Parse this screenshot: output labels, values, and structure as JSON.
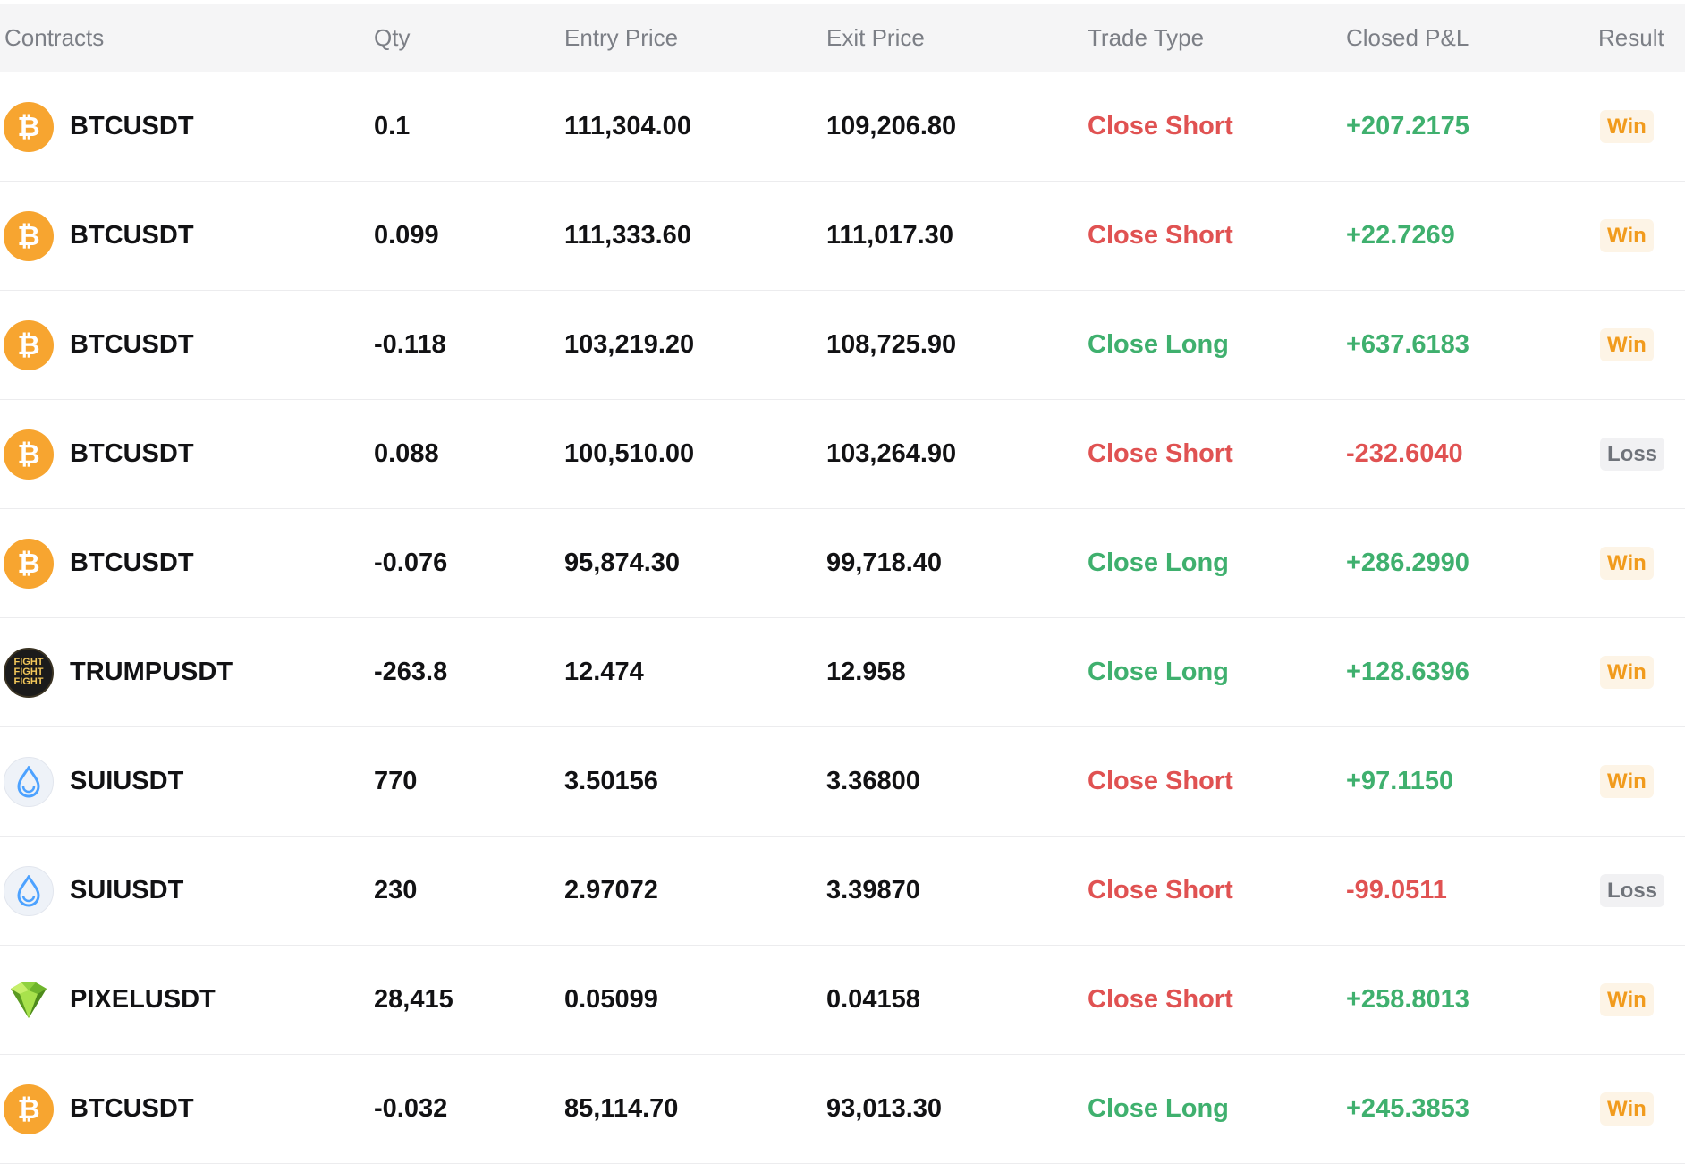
{
  "table": {
    "headers": {
      "contracts": "Contracts",
      "qty": "Qty",
      "entry_price": "Entry Price",
      "exit_price": "Exit Price",
      "trade_type": "Trade Type",
      "closed_pnl": "Closed P&L",
      "result": "Result"
    },
    "rows": [
      {
        "icon": "bitcoin-icon",
        "symbol": "BTCUSDT",
        "qty": "0.1",
        "entry": "111,304.00",
        "exit": "109,206.80",
        "type": "Close Short",
        "pnl": "+207.2175",
        "result": "Win"
      },
      {
        "icon": "bitcoin-icon",
        "symbol": "BTCUSDT",
        "qty": "0.099",
        "entry": "111,333.60",
        "exit": "111,017.30",
        "type": "Close Short",
        "pnl": "+22.7269",
        "result": "Win"
      },
      {
        "icon": "bitcoin-icon",
        "symbol": "BTCUSDT",
        "qty": "-0.118",
        "entry": "103,219.20",
        "exit": "108,725.90",
        "type": "Close Long",
        "pnl": "+637.6183",
        "result": "Win"
      },
      {
        "icon": "bitcoin-icon",
        "symbol": "BTCUSDT",
        "qty": "0.088",
        "entry": "100,510.00",
        "exit": "103,264.90",
        "type": "Close Short",
        "pnl": "-232.6040",
        "result": "Loss"
      },
      {
        "icon": "bitcoin-icon",
        "symbol": "BTCUSDT",
        "qty": "-0.076",
        "entry": "95,874.30",
        "exit": "99,718.40",
        "type": "Close Long",
        "pnl": "+286.2990",
        "result": "Win"
      },
      {
        "icon": "trump-coin-icon",
        "symbol": "TRUMPUSDT",
        "qty": "-263.8",
        "entry": "12.474",
        "exit": "12.958",
        "type": "Close Long",
        "pnl": "+128.6396",
        "result": "Win"
      },
      {
        "icon": "sui-drop-icon",
        "symbol": "SUIUSDT",
        "qty": "770",
        "entry": "3.50156",
        "exit": "3.36800",
        "type": "Close Short",
        "pnl": "+97.1150",
        "result": "Win"
      },
      {
        "icon": "sui-drop-icon",
        "symbol": "SUIUSDT",
        "qty": "230",
        "entry": "2.97072",
        "exit": "3.39870",
        "type": "Close Short",
        "pnl": "-99.0511",
        "result": "Loss"
      },
      {
        "icon": "pixel-gem-icon",
        "symbol": "PIXELUSDT",
        "qty": "28,415",
        "entry": "0.05099",
        "exit": "0.04158",
        "type": "Close Short",
        "pnl": "+258.8013",
        "result": "Win"
      },
      {
        "icon": "bitcoin-icon",
        "symbol": "BTCUSDT",
        "qty": "-0.032",
        "entry": "85,114.70",
        "exit": "93,013.30",
        "type": "Close Long",
        "pnl": "+245.3853",
        "result": "Win"
      }
    ]
  },
  "icons": {
    "btc_glyph": "₿",
    "trump_text": [
      "FIGHT",
      "FIGHT",
      "FIGHT"
    ]
  },
  "colors": {
    "short": "#e05252",
    "long": "#3fb06e",
    "win": "#f19b1d",
    "loss": "#6f737a",
    "btc": "#f7a530",
    "sui": "#4da2ff"
  }
}
